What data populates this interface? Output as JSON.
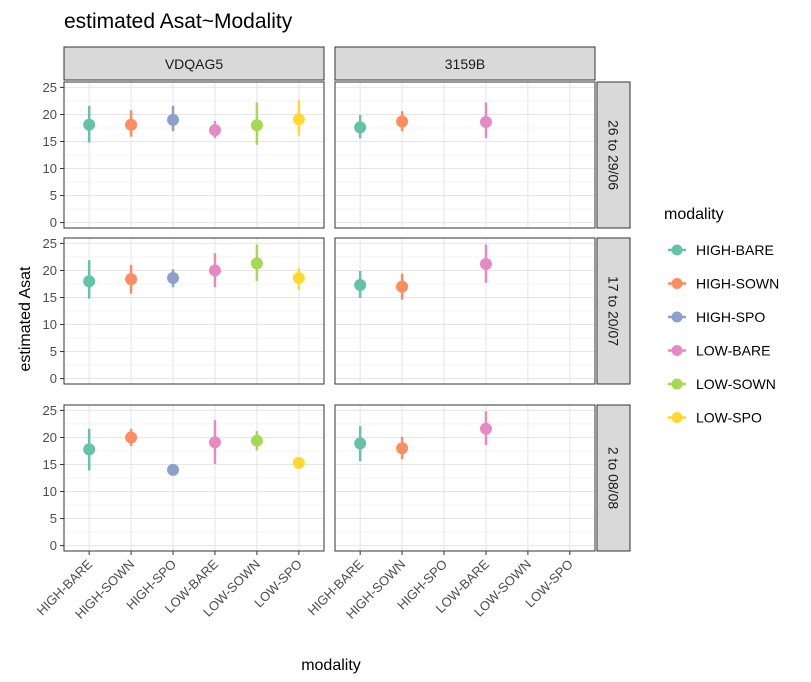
{
  "chart_data": {
    "type": "scatter",
    "title": "estimated Asat~Modality",
    "xlabel": "modality",
    "ylabel": "estimated Asat",
    "ylim": [
      -1,
      26
    ],
    "yticks": [
      0,
      5,
      10,
      15,
      20,
      25
    ],
    "grid": true,
    "legend_position": "right",
    "legend_title": "modality",
    "categories": [
      "HIGH-BARE",
      "HIGH-SOWN",
      "HIGH-SPO",
      "LOW-BARE",
      "LOW-SOWN",
      "LOW-SPO"
    ],
    "colors": {
      "HIGH-BARE": "#66c2a5",
      "HIGH-SOWN": "#fc8d62",
      "HIGH-SPO": "#8da0cb",
      "LOW-BARE": "#e78ac3",
      "LOW-SOWN": "#a6d854",
      "LOW-SPO": "#ffd92f"
    },
    "col_facets": [
      "VDQAG5",
      "3159B"
    ],
    "row_facets": [
      "26 to 29/06",
      "17 to 20/07",
      "2 to 08/08"
    ],
    "panels": [
      {
        "col": "VDQAG5",
        "row": "26 to 29/06",
        "points": [
          {
            "category": "HIGH-BARE",
            "y": 18.1,
            "ymin": 14.8,
            "ymax": 21.6
          },
          {
            "category": "HIGH-SOWN",
            "y": 18.1,
            "ymin": 15.9,
            "ymax": 20.8
          },
          {
            "category": "HIGH-SPO",
            "y": 19.0,
            "ymin": 16.9,
            "ymax": 21.6
          },
          {
            "category": "LOW-BARE",
            "y": 17.1,
            "ymin": 15.6,
            "ymax": 18.8
          },
          {
            "category": "LOW-SOWN",
            "y": 18.0,
            "ymin": 14.4,
            "ymax": 22.2
          },
          {
            "category": "LOW-SPO",
            "y": 19.1,
            "ymin": 16.1,
            "ymax": 22.7
          }
        ]
      },
      {
        "col": "3159B",
        "row": "26 to 29/06",
        "points": [
          {
            "category": "HIGH-BARE",
            "y": 17.6,
            "ymin": 15.6,
            "ymax": 19.9
          },
          {
            "category": "HIGH-SOWN",
            "y": 18.7,
            "ymin": 16.9,
            "ymax": 20.6
          },
          {
            "category": "LOW-BARE",
            "y": 18.6,
            "ymin": 15.6,
            "ymax": 22.2
          }
        ]
      },
      {
        "col": "VDQAG5",
        "row": "17 to 20/07",
        "points": [
          {
            "category": "HIGH-BARE",
            "y": 18.0,
            "ymin": 14.8,
            "ymax": 21.9
          },
          {
            "category": "HIGH-SOWN",
            "y": 18.4,
            "ymin": 15.7,
            "ymax": 21.0
          },
          {
            "category": "HIGH-SPO",
            "y": 18.6,
            "ymin": 16.9,
            "ymax": 20.2
          },
          {
            "category": "LOW-BARE",
            "y": 20.0,
            "ymin": 16.9,
            "ymax": 23.2
          },
          {
            "category": "LOW-SOWN",
            "y": 21.3,
            "ymin": 18.0,
            "ymax": 24.8
          },
          {
            "category": "LOW-SPO",
            "y": 18.6,
            "ymin": 16.4,
            "ymax": 20.4
          }
        ]
      },
      {
        "col": "3159B",
        "row": "17 to 20/07",
        "points": [
          {
            "category": "HIGH-BARE",
            "y": 17.3,
            "ymin": 14.9,
            "ymax": 19.9
          },
          {
            "category": "HIGH-SOWN",
            "y": 17.0,
            "ymin": 14.6,
            "ymax": 19.4
          },
          {
            "category": "LOW-BARE",
            "y": 21.2,
            "ymin": 17.7,
            "ymax": 24.8
          }
        ]
      },
      {
        "col": "VDQAG5",
        "row": "2 to 08/08",
        "points": [
          {
            "category": "HIGH-BARE",
            "y": 17.8,
            "ymin": 13.9,
            "ymax": 21.6
          },
          {
            "category": "HIGH-SOWN",
            "y": 20.0,
            "ymin": 18.4,
            "ymax": 21.6
          },
          {
            "category": "HIGH-SPO",
            "y": 14.0,
            "ymin": 13.2,
            "ymax": 14.8
          },
          {
            "category": "LOW-BARE",
            "y": 19.1,
            "ymin": 15.1,
            "ymax": 23.2
          },
          {
            "category": "LOW-SOWN",
            "y": 19.4,
            "ymin": 17.6,
            "ymax": 21.2
          },
          {
            "category": "LOW-SPO",
            "y": 15.3,
            "ymin": 14.4,
            "ymax": 16.3
          }
        ]
      },
      {
        "col": "3159B",
        "row": "2 to 08/08",
        "points": [
          {
            "category": "HIGH-BARE",
            "y": 18.9,
            "ymin": 15.6,
            "ymax": 22.1
          },
          {
            "category": "HIGH-SOWN",
            "y": 18.0,
            "ymin": 16.0,
            "ymax": 20.1
          },
          {
            "category": "LOW-BARE",
            "y": 21.6,
            "ymin": 18.6,
            "ymax": 24.8
          }
        ]
      }
    ]
  }
}
